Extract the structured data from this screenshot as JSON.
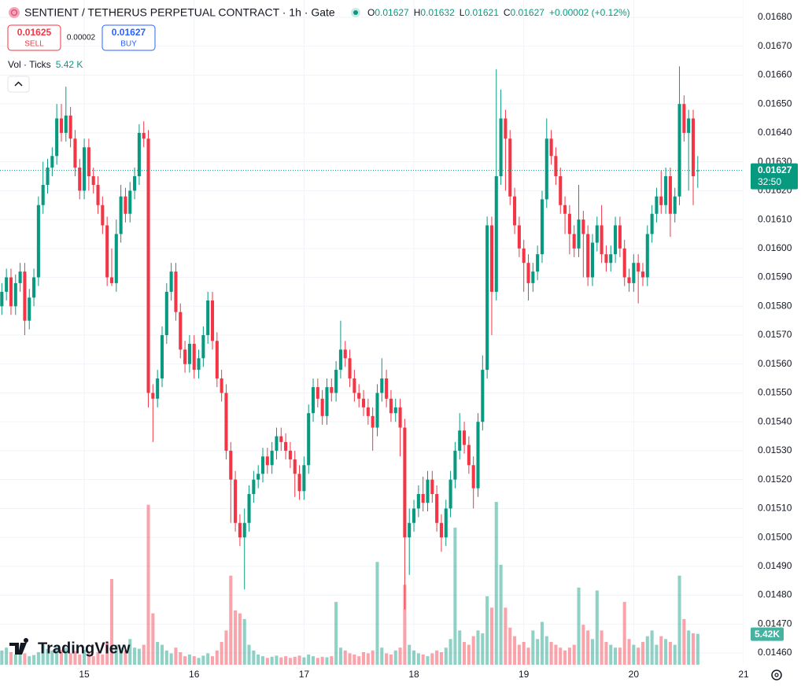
{
  "chart_data": {
    "type": "candlestick",
    "title": "SENTIENT / TETHERUS PERPETUAL CONTRACT · 1h · Gate",
    "legend_labels": [
      "O",
      "H",
      "L",
      "C"
    ],
    "legend_values": [
      0.01627,
      0.01632,
      0.01621,
      0.01627
    ],
    "change": "+0.00002 (+0.12%)",
    "sell_price": 0.01625,
    "sell_label": "SELL",
    "spread": 2e-05,
    "buy_price": 0.01627,
    "buy_label": "BUY",
    "volume_title": "Vol · Ticks",
    "volume_legend": "5.42 K",
    "volume_label": "5.42K",
    "last_price": 0.01627,
    "countdown": "32:50",
    "logo": "TradingView",
    "up_color": "#089981",
    "down_color": "#f23645",
    "grid": true,
    "xlim": [
      -0.4,
      162
    ],
    "xticks": [
      {
        "value": 18,
        "label": "15"
      },
      {
        "value": 42,
        "label": "16"
      },
      {
        "value": 66,
        "label": "17"
      },
      {
        "value": 90,
        "label": "18"
      },
      {
        "value": 114,
        "label": "19"
      },
      {
        "value": 138,
        "label": "20"
      },
      {
        "value": 162,
        "label": "21"
      }
    ],
    "ylim": [
      0.0146,
      0.0168
    ],
    "yticks": [
      {
        "value": 0.0146,
        "label": "0.01460"
      },
      {
        "value": 0.0147,
        "label": "0.01470"
      },
      {
        "value": 0.0148,
        "label": "0.01480"
      },
      {
        "value": 0.0149,
        "label": "0.01490"
      },
      {
        "value": 0.015,
        "label": "0.01500"
      },
      {
        "value": 0.0151,
        "label": "0.01510"
      },
      {
        "value": 0.0152,
        "label": "0.01520"
      },
      {
        "value": 0.0153,
        "label": "0.01530"
      },
      {
        "value": 0.0154,
        "label": "0.01540"
      },
      {
        "value": 0.0155,
        "label": "0.01550"
      },
      {
        "value": 0.0156,
        "label": "0.01560"
      },
      {
        "value": 0.0157,
        "label": "0.01570"
      },
      {
        "value": 0.0158,
        "label": "0.01580"
      },
      {
        "value": 0.0159,
        "label": "0.01590"
      },
      {
        "value": 0.016,
        "label": "0.01600"
      },
      {
        "value": 0.0161,
        "label": "0.01610"
      },
      {
        "value": 0.0162,
        "label": "0.01620"
      },
      {
        "value": 0.0163,
        "label": "0.01630"
      },
      {
        "value": 0.0164,
        "label": "0.01640"
      },
      {
        "value": 0.0165,
        "label": "0.01650"
      },
      {
        "value": 0.0166,
        "label": "0.01660"
      },
      {
        "value": 0.0167,
        "label": "0.01670"
      },
      {
        "value": 0.0168,
        "label": "0.01680"
      }
    ],
    "open": [
      0.0158,
      0.01585,
      0.0159,
      0.0158,
      0.01588,
      0.01592,
      0.01575,
      0.01583,
      0.0159,
      0.01615,
      0.01622,
      0.01628,
      0.01632,
      0.01645,
      0.0164,
      0.01646,
      0.01638,
      0.01628,
      0.0162,
      0.01635,
      0.01625,
      0.01622,
      0.01615,
      0.01608,
      0.0159,
      0.01588,
      0.01605,
      0.01618,
      0.01612,
      0.0162,
      0.01625,
      0.0164,
      0.01638,
      0.0155,
      0.01548,
      0.01555,
      0.0157,
      0.01585,
      0.01592,
      0.01578,
      0.01565,
      0.0156,
      0.01567,
      0.01558,
      0.01562,
      0.0157,
      0.01582,
      0.01568,
      0.01555,
      0.0155,
      0.0153,
      0.0152,
      0.01505,
      0.015,
      0.01505,
      0.01515,
      0.0152,
      0.01522,
      0.01528,
      0.01525,
      0.0153,
      0.01535,
      0.01533,
      0.0153,
      0.01527,
      0.01522,
      0.01516,
      0.01525,
      0.01543,
      0.01552,
      0.01548,
      0.01542,
      0.01552,
      0.0155,
      0.01558,
      0.01565,
      0.01562,
      0.01555,
      0.0155,
      0.01548,
      0.01545,
      0.01542,
      0.01538,
      0.0155,
      0.01555,
      0.01548,
      0.01543,
      0.01545,
      0.01538,
      0.015,
      0.01505,
      0.0151,
      0.01515,
      0.01512,
      0.0152,
      0.01515,
      0.01505,
      0.015,
      0.0151,
      0.0152,
      0.0153,
      0.01537,
      0.01532,
      0.01525,
      0.01517,
      0.0154,
      0.01558,
      0.01608,
      0.01585,
      0.01625,
      0.01645,
      0.01638,
      0.01618,
      0.01608,
      0.016,
      0.01595,
      0.01588,
      0.01592,
      0.01598,
      0.01617,
      0.01638,
      0.01632,
      0.01625,
      0.01615,
      0.01612,
      0.01605,
      0.016,
      0.0161,
      0.01605,
      0.0159,
      0.01602,
      0.01608,
      0.01598,
      0.01595,
      0.01598,
      0.01608,
      0.016,
      0.0159,
      0.01588,
      0.01595,
      0.01592,
      0.0159,
      0.01605,
      0.01612,
      0.01618,
      0.01615,
      0.01625,
      0.01612,
      0.01618,
      0.0165,
      0.0164,
      0.01645,
      0.01627
    ],
    "high": [
      0.01588,
      0.01593,
      0.01593,
      0.01591,
      0.01595,
      0.01595,
      0.01586,
      0.01593,
      0.01618,
      0.0163,
      0.01631,
      0.01635,
      0.0165,
      0.0165,
      0.01656,
      0.01649,
      0.01641,
      0.01631,
      0.01638,
      0.01638,
      0.01628,
      0.01625,
      0.01618,
      0.01611,
      0.016,
      0.0161,
      0.01622,
      0.01621,
      0.01623,
      0.01628,
      0.01643,
      0.01644,
      0.01641,
      0.01553,
      0.01558,
      0.01573,
      0.01588,
      0.01595,
      0.01595,
      0.01581,
      0.01568,
      0.0157,
      0.0157,
      0.01565,
      0.01573,
      0.01585,
      0.01585,
      0.01571,
      0.01558,
      0.01553,
      0.01533,
      0.01523,
      0.01508,
      0.0151,
      0.01518,
      0.01523,
      0.01525,
      0.01531,
      0.01531,
      0.01533,
      0.01538,
      0.01538,
      0.01536,
      0.01533,
      0.0153,
      0.01525,
      0.01528,
      0.01546,
      0.01555,
      0.01555,
      0.01551,
      0.01555,
      0.01555,
      0.01561,
      0.01575,
      0.01568,
      0.01565,
      0.01558,
      0.01553,
      0.01551,
      0.01548,
      0.01545,
      0.01553,
      0.01562,
      0.01558,
      0.01551,
      0.01548,
      0.01548,
      0.01541,
      0.0151,
      0.01513,
      0.01518,
      0.01521,
      0.01523,
      0.01523,
      0.01518,
      0.01508,
      0.01513,
      0.01523,
      0.01533,
      0.01543,
      0.0154,
      0.01535,
      0.01528,
      0.01543,
      0.01563,
      0.01611,
      0.01611,
      0.01662,
      0.01655,
      0.01648,
      0.01641,
      0.01621,
      0.01611,
      0.01603,
      0.01598,
      0.01595,
      0.01601,
      0.0162,
      0.01645,
      0.01641,
      0.01635,
      0.01628,
      0.01618,
      0.01615,
      0.01608,
      0.01622,
      0.01613,
      0.01608,
      0.01605,
      0.01611,
      0.01615,
      0.01601,
      0.01601,
      0.01611,
      0.01611,
      0.01603,
      0.01593,
      0.01598,
      0.01598,
      0.01595,
      0.01608,
      0.01615,
      0.01621,
      0.01627,
      0.01628,
      0.01628,
      0.01621,
      0.01663,
      0.01653,
      0.01648,
      0.01648,
      0.01632
    ],
    "low": [
      0.01577,
      0.01582,
      0.01577,
      0.01577,
      0.01585,
      0.0157,
      0.01572,
      0.0158,
      0.01587,
      0.01612,
      0.01619,
      0.01625,
      0.01629,
      0.01637,
      0.01637,
      0.01635,
      0.01625,
      0.01617,
      0.01617,
      0.0162,
      0.01619,
      0.01612,
      0.01605,
      0.01587,
      0.01587,
      0.01585,
      0.01602,
      0.01609,
      0.01609,
      0.01617,
      0.01622,
      0.01635,
      0.01545,
      0.01533,
      0.01545,
      0.01552,
      0.01567,
      0.01582,
      0.01575,
      0.01562,
      0.01557,
      0.01557,
      0.01555,
      0.01555,
      0.01559,
      0.01567,
      0.01565,
      0.01552,
      0.01547,
      0.01527,
      0.01505,
      0.01502,
      0.01497,
      0.01482,
      0.01502,
      0.01512,
      0.01517,
      0.01519,
      0.01522,
      0.01522,
      0.01527,
      0.0153,
      0.01527,
      0.01524,
      0.01514,
      0.01513,
      0.01513,
      0.01522,
      0.0154,
      0.01545,
      0.01539,
      0.01539,
      0.01547,
      0.01547,
      0.01555,
      0.01559,
      0.01552,
      0.01547,
      0.01545,
      0.01542,
      0.01539,
      0.0153,
      0.01535,
      0.01547,
      0.01545,
      0.0154,
      0.0154,
      0.01528,
      0.01475,
      0.01487,
      0.01502,
      0.01507,
      0.01509,
      0.01509,
      0.01512,
      0.01502,
      0.01495,
      0.01497,
      0.01507,
      0.01517,
      0.01527,
      0.01529,
      0.01522,
      0.0151,
      0.01514,
      0.01537,
      0.01555,
      0.0157,
      0.01582,
      0.01622,
      0.0162,
      0.01615,
      0.01605,
      0.01597,
      0.01585,
      0.01582,
      0.01585,
      0.01589,
      0.01595,
      0.01614,
      0.01629,
      0.01622,
      0.01612,
      0.01605,
      0.01598,
      0.01597,
      0.01597,
      0.0159,
      0.01587,
      0.01587,
      0.01599,
      0.01595,
      0.01592,
      0.01592,
      0.01595,
      0.01597,
      0.01587,
      0.01585,
      0.01585,
      0.01581,
      0.01587,
      0.01587,
      0.01602,
      0.01609,
      0.01612,
      0.01612,
      0.01604,
      0.01609,
      0.01615,
      0.01637,
      0.0162,
      0.01615,
      0.01621
    ],
    "close": [
      0.01585,
      0.0159,
      0.0158,
      0.01588,
      0.01592,
      0.01575,
      0.01583,
      0.0159,
      0.01615,
      0.01622,
      0.01628,
      0.01632,
      0.01645,
      0.0164,
      0.01646,
      0.01638,
      0.01628,
      0.0162,
      0.01635,
      0.01625,
      0.01622,
      0.01615,
      0.01608,
      0.0159,
      0.01588,
      0.01605,
      0.01618,
      0.01612,
      0.0162,
      0.01625,
      0.0164,
      0.01638,
      0.0155,
      0.01548,
      0.01555,
      0.0157,
      0.01585,
      0.01592,
      0.01578,
      0.01565,
      0.0156,
      0.01567,
      0.01558,
      0.01562,
      0.0157,
      0.01582,
      0.01568,
      0.01555,
      0.0155,
      0.0153,
      0.0152,
      0.01505,
      0.015,
      0.01505,
      0.01515,
      0.0152,
      0.01522,
      0.01528,
      0.01525,
      0.0153,
      0.01535,
      0.01533,
      0.0153,
      0.01527,
      0.01522,
      0.01516,
      0.01525,
      0.01543,
      0.01552,
      0.01548,
      0.01542,
      0.01552,
      0.0155,
      0.01558,
      0.01565,
      0.01562,
      0.01555,
      0.0155,
      0.01548,
      0.01545,
      0.01542,
      0.01538,
      0.0155,
      0.01555,
      0.01548,
      0.01543,
      0.01545,
      0.01538,
      0.015,
      0.01505,
      0.0151,
      0.01515,
      0.01512,
      0.0152,
      0.01515,
      0.01505,
      0.015,
      0.0151,
      0.0152,
      0.0153,
      0.01537,
      0.01532,
      0.01525,
      0.01517,
      0.0154,
      0.01558,
      0.01608,
      0.01585,
      0.01625,
      0.01645,
      0.01638,
      0.01618,
      0.01608,
      0.016,
      0.01595,
      0.01588,
      0.01592,
      0.01598,
      0.01617,
      0.01638,
      0.01632,
      0.01625,
      0.01615,
      0.01612,
      0.01605,
      0.016,
      0.0161,
      0.01605,
      0.0159,
      0.01602,
      0.01608,
      0.01598,
      0.01595,
      0.01598,
      0.01608,
      0.016,
      0.0159,
      0.01588,
      0.01595,
      0.01592,
      0.0159,
      0.01605,
      0.01612,
      0.01618,
      0.01615,
      0.01625,
      0.01612,
      0.01618,
      0.0165,
      0.0164,
      0.01645,
      0.01625,
      0.01627
    ],
    "volume": [
      2500,
      3000,
      2200,
      1800,
      2600,
      2000,
      1500,
      1700,
      2200,
      3500,
      2800,
      2500,
      3200,
      2600,
      3000,
      2000,
      2400,
      1800,
      2600,
      2000,
      1500,
      2200,
      1800,
      4000,
      15000,
      3500,
      3000,
      2500,
      4500,
      3000,
      2800,
      3500,
      28000,
      9000,
      4000,
      3500,
      2500,
      2000,
      3000,
      2200,
      1500,
      1800,
      1500,
      1200,
      1600,
      2000,
      1500,
      2500,
      4000,
      6000,
      15600,
      9500,
      9000,
      8000,
      3500,
      2500,
      1800,
      1500,
      1200,
      1400,
      1600,
      1300,
      1500,
      1200,
      1400,
      1600,
      1300,
      1800,
      1500,
      1200,
      1400,
      1300,
      1500,
      11000,
      3000,
      2500,
      2000,
      1800,
      1500,
      2200,
      2000,
      2500,
      18000,
      3000,
      2000,
      1800,
      2500,
      3000,
      14000,
      3500,
      2500,
      2000,
      1800,
      1500,
      2000,
      2500,
      2200,
      3000,
      4500,
      24000,
      6000,
      4000,
      3500,
      5000,
      6000,
      5500,
      12000,
      10000,
      28500,
      17500,
      10000,
      6500,
      5000,
      3500,
      4000,
      3000,
      6000,
      4500,
      7500,
      5000,
      4000,
      3500,
      3000,
      2500,
      3000,
      3500,
      13500,
      7000,
      6000,
      4500,
      13000,
      6000,
      4000,
      3500,
      3000,
      3000,
      11000,
      4500,
      3500,
      3000,
      4000,
      5000,
      6000,
      3500,
      5000,
      4500,
      4000,
      3500,
      15600,
      8000,
      6000,
      5500,
      5420
    ]
  }
}
